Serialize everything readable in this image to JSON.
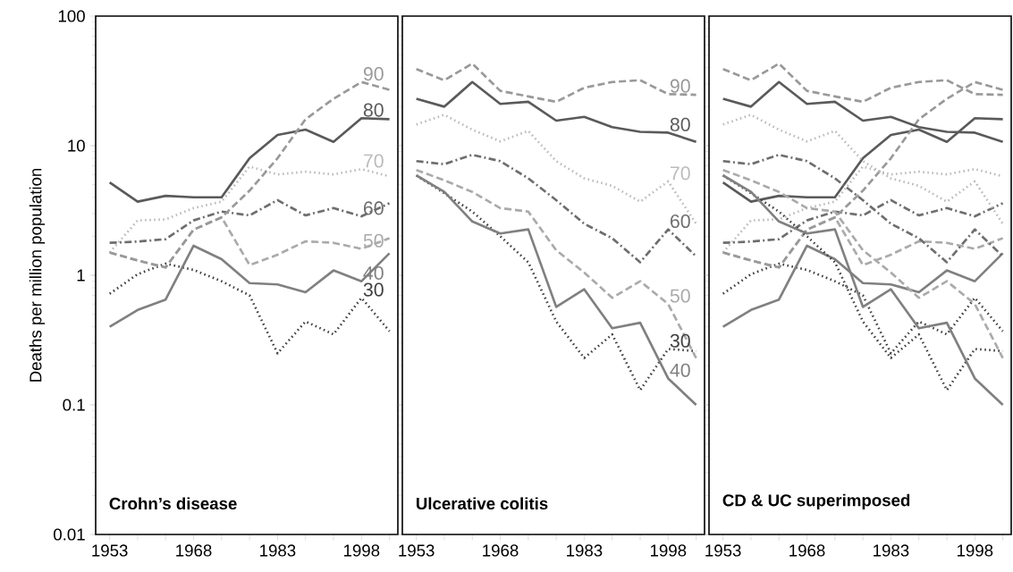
{
  "chart_data": [
    {
      "type": "line",
      "title": "Crohn’s disease",
      "ylabel": "Deaths per million population",
      "log": true,
      "x": [
        1953,
        1958,
        1963,
        1968,
        1973,
        1978,
        1983,
        1988,
        1993,
        1998,
        2003
      ],
      "xlim": [
        1950.5,
        2004.5
      ],
      "ylim": [
        0.01,
        100
      ],
      "xticks": [
        1953,
        {
          "value": 1958,
          "label": null
        },
        {
          "value": 1963,
          "label": null
        },
        1968,
        {
          "value": 1973,
          "label": null
        },
        {
          "value": 1978,
          "label": null
        },
        1983,
        {
          "value": 1988,
          "label": null
        },
        {
          "value": 1993,
          "label": null
        },
        1998,
        {
          "value": 2003,
          "label": null
        }
      ],
      "yticks": [
        0.01,
        0.1,
        1,
        10,
        100
      ],
      "series": [
        {
          "name": "30",
          "color": "#404040",
          "line_style": "dotted",
          "values": [
            0.72,
            1.02,
            1.23,
            1.1,
            0.9,
            0.7,
            0.25,
            0.44,
            0.35,
            0.67,
            0.37
          ]
        },
        {
          "name": "40",
          "color": "#808080",
          "line_style": "solid",
          "values": [
            0.4,
            0.54,
            0.65,
            1.69,
            1.33,
            0.87,
            0.85,
            0.74,
            1.09,
            0.9,
            1.48
          ]
        },
        {
          "name": "50",
          "color": "#aaaaaa",
          "line_style": "dashed",
          "values": [
            1.5,
            1.3,
            1.15,
            2.25,
            2.8,
            1.2,
            1.44,
            1.83,
            1.78,
            1.6,
            1.93
          ]
        },
        {
          "name": "60",
          "color": "#6e6e6e",
          "line_style": "dashdot",
          "values": [
            1.78,
            1.82,
            1.9,
            2.65,
            3.1,
            2.9,
            3.8,
            2.9,
            3.3,
            2.85,
            3.6
          ]
        },
        {
          "name": "70",
          "color": "#bbbbbb",
          "line_style": "dotted",
          "values": [
            1.5,
            2.65,
            2.7,
            3.3,
            3.7,
            6.9,
            6.0,
            6.3,
            6.0,
            6.6,
            5.8
          ]
        },
        {
          "name": "80",
          "color": "#5a5a5a",
          "line_style": "solid",
          "values": [
            5.2,
            3.7,
            4.1,
            4.0,
            4.0,
            8.0,
            12.1,
            13.3,
            10.7,
            16.3,
            16.0
          ]
        },
        {
          "name": "90",
          "color": "#999999",
          "line_style": "dashed",
          "values": [
            1.5,
            1.3,
            1.15,
            2.25,
            2.8,
            4.5,
            8,
            16,
            23,
            31,
            27
          ]
        }
      ]
    },
    {
      "type": "line",
      "title": "Ulcerative colitis",
      "log": true,
      "tick_labels": "x",
      "x": [
        1953,
        1958,
        1963,
        1968,
        1973,
        1978,
        1983,
        1988,
        1993,
        1998,
        2003
      ],
      "xlim": [
        1950.5,
        2004.5
      ],
      "ylim": [
        0.01,
        100
      ],
      "xticks": [
        1953,
        {
          "value": 1958,
          "label": null
        },
        {
          "value": 1963,
          "label": null
        },
        1968,
        {
          "value": 1973,
          "label": null
        },
        {
          "value": 1978,
          "label": null
        },
        1983,
        {
          "value": 1988,
          "label": null
        },
        {
          "value": 1993,
          "label": null
        },
        1998,
        {
          "value": 2003,
          "label": null
        }
      ],
      "yticks": [
        0.01,
        0.1,
        1,
        10,
        100
      ],
      "series": [
        {
          "name": "30",
          "color": "#404040",
          "line_style": "dotted",
          "values": [
            5.9,
            4.3,
            3.1,
            2.0,
            1.26,
            0.44,
            0.23,
            0.35,
            0.13,
            0.27,
            0.26
          ]
        },
        {
          "name": "40",
          "color": "#808080",
          "line_style": "solid",
          "values": [
            5.9,
            4.4,
            2.6,
            2.1,
            2.26,
            0.57,
            0.78,
            0.39,
            0.43,
            0.16,
            0.1
          ]
        },
        {
          "name": "50",
          "color": "#aaaaaa",
          "line_style": "dashed",
          "values": [
            6.5,
            5.4,
            4.4,
            3.3,
            3.1,
            1.56,
            1.05,
            0.67,
            0.9,
            0.6,
            0.23
          ]
        },
        {
          "name": "60",
          "color": "#6e6e6e",
          "line_style": "dashdot",
          "values": [
            7.6,
            7.2,
            8.5,
            7.6,
            5.6,
            3.8,
            2.5,
            1.93,
            1.26,
            2.26,
            1.4
          ]
        },
        {
          "name": "70",
          "color": "#bbbbbb",
          "line_style": "dotted",
          "values": [
            14.6,
            17.3,
            13.3,
            10.8,
            13,
            7.6,
            5.6,
            4.9,
            3.7,
            5.3,
            2.5
          ]
        },
        {
          "name": "80",
          "color": "#5a5a5a",
          "line_style": "solid",
          "values": [
            23,
            20,
            31,
            21,
            21.8,
            15.6,
            16.7,
            13.9,
            12.8,
            12.6,
            10.7
          ]
        },
        {
          "name": "90",
          "color": "#999999",
          "line_style": "dashed",
          "values": [
            39,
            32,
            43,
            26.5,
            24,
            21.8,
            28,
            31,
            32,
            25,
            24.7
          ]
        }
      ]
    },
    {
      "type": "line",
      "title": "CD & UC superimposed",
      "log": true,
      "tick_labels": "x",
      "x": [
        1953,
        1958,
        1963,
        1968,
        1973,
        1978,
        1983,
        1988,
        1993,
        1998,
        2003
      ],
      "xlim": [
        1950.5,
        2004.5
      ],
      "ylim": [
        0.01,
        100
      ],
      "xticks": [
        1953,
        {
          "value": 1958,
          "label": null
        },
        {
          "value": 1963,
          "label": null
        },
        1968,
        {
          "value": 1973,
          "label": null
        },
        {
          "value": 1978,
          "label": null
        },
        1983,
        {
          "value": 1988,
          "label": null
        },
        {
          "value": 1993,
          "label": null
        },
        1998,
        {
          "value": 2003,
          "label": null
        }
      ],
      "yticks": [
        0.01,
        0.1,
        1,
        10,
        100
      ],
      "series": [
        {
          "color": "#404040",
          "line_style": "dotted",
          "values": [
            0.72,
            1.02,
            1.23,
            1.1,
            0.9,
            0.7,
            0.25,
            0.44,
            0.35,
            0.67,
            0.37
          ]
        },
        {
          "color": "#808080",
          "line_style": "solid",
          "values": [
            0.4,
            0.54,
            0.65,
            1.69,
            1.33,
            0.87,
            0.85,
            0.74,
            1.09,
            0.9,
            1.48
          ]
        },
        {
          "color": "#aaaaaa",
          "line_style": "dashed",
          "values": [
            1.5,
            1.3,
            1.15,
            2.25,
            2.8,
            1.2,
            1.44,
            1.83,
            1.78,
            1.6,
            1.93
          ]
        },
        {
          "color": "#6e6e6e",
          "line_style": "dashdot",
          "values": [
            1.78,
            1.82,
            1.9,
            2.65,
            3.1,
            2.9,
            3.8,
            2.9,
            3.3,
            2.85,
            3.6
          ]
        },
        {
          "color": "#bbbbbb",
          "line_style": "dotted",
          "values": [
            1.5,
            2.65,
            2.7,
            3.3,
            3.7,
            6.9,
            6.0,
            6.3,
            6.0,
            6.6,
            5.8
          ]
        },
        {
          "color": "#5a5a5a",
          "line_style": "solid",
          "values": [
            5.2,
            3.7,
            4.1,
            4.0,
            4.0,
            8.0,
            12.1,
            13.3,
            10.7,
            16.3,
            16.0
          ]
        },
        {
          "color": "#999999",
          "line_style": "dashed",
          "values": [
            1.5,
            1.3,
            1.15,
            2.25,
            2.8,
            4.5,
            8,
            16,
            23,
            31,
            27
          ]
        },
        {
          "color": "#404040",
          "line_style": "dotted",
          "values": [
            5.9,
            4.3,
            3.1,
            2.0,
            1.26,
            0.44,
            0.23,
            0.35,
            0.13,
            0.27,
            0.26
          ]
        },
        {
          "color": "#808080",
          "line_style": "solid",
          "values": [
            5.9,
            4.4,
            2.6,
            2.1,
            2.26,
            0.57,
            0.78,
            0.39,
            0.43,
            0.16,
            0.1
          ]
        },
        {
          "color": "#aaaaaa",
          "line_style": "dashed",
          "values": [
            6.5,
            5.4,
            4.4,
            3.3,
            3.1,
            1.56,
            1.05,
            0.67,
            0.9,
            0.6,
            0.23
          ]
        },
        {
          "color": "#6e6e6e",
          "line_style": "dashdot",
          "values": [
            7.6,
            7.2,
            8.5,
            7.6,
            5.6,
            3.8,
            2.5,
            1.93,
            1.26,
            2.26,
            1.4
          ]
        },
        {
          "color": "#bbbbbb",
          "line_style": "dotted",
          "values": [
            14.6,
            17.3,
            13.3,
            10.8,
            13,
            7.6,
            5.6,
            4.9,
            3.7,
            5.3,
            2.5
          ]
        },
        {
          "color": "#5a5a5a",
          "line_style": "solid",
          "values": [
            23,
            20,
            31,
            21,
            21.8,
            15.6,
            16.7,
            13.9,
            12.8,
            12.6,
            10.7
          ]
        },
        {
          "color": "#999999",
          "line_style": "dashed",
          "values": [
            39,
            32,
            43,
            26.5,
            24,
            21.8,
            28,
            31,
            32,
            25,
            24.7
          ]
        }
      ]
    }
  ]
}
